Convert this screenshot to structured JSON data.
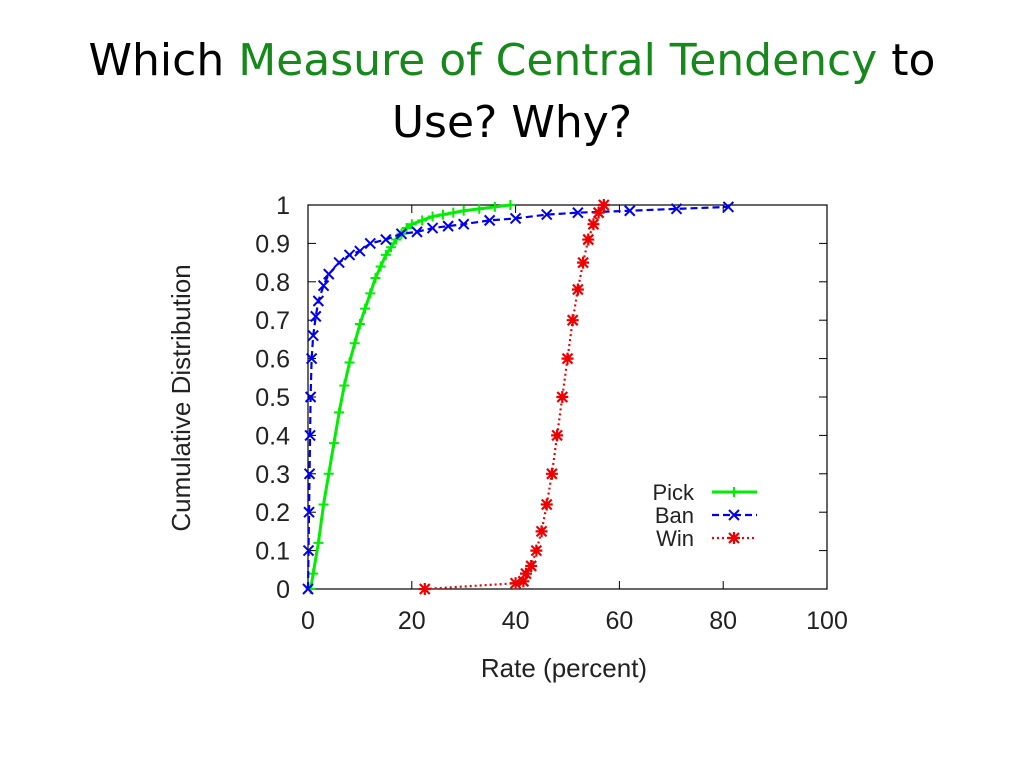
{
  "slide": {
    "title_part1": "Which ",
    "title_highlight": "Measure of Central Tendency",
    "title_part2": " to",
    "title_line2": "Use?  Why?",
    "highlight_color": "#16891b"
  },
  "chart_data": {
    "type": "line",
    "title": "",
    "xlabel": "Rate (percent)",
    "ylabel": "Cumulative Distribution",
    "xlim": [
      0,
      100
    ],
    "ylim": [
      0,
      1
    ],
    "xticks": [
      "0",
      "20",
      "40",
      "60",
      "80",
      "100"
    ],
    "yticks": [
      "0",
      "0.1",
      "0.2",
      "0.3",
      "0.4",
      "0.5",
      "0.6",
      "0.7",
      "0.8",
      "0.9",
      "1"
    ],
    "grid": false,
    "legend_position": "bottom-right",
    "series": [
      {
        "name": "Pick",
        "color": "#00ee00",
        "line_style": "solid",
        "marker": "plus",
        "points": [
          [
            0.5,
            0.0
          ],
          [
            1,
            0.04
          ],
          [
            2,
            0.12
          ],
          [
            3,
            0.22
          ],
          [
            4,
            0.3
          ],
          [
            5,
            0.38
          ],
          [
            6,
            0.46
          ],
          [
            7,
            0.53
          ],
          [
            8,
            0.59
          ],
          [
            9,
            0.64
          ],
          [
            10,
            0.69
          ],
          [
            11,
            0.73
          ],
          [
            12,
            0.77
          ],
          [
            13,
            0.81
          ],
          [
            14,
            0.84
          ],
          [
            15,
            0.87
          ],
          [
            16,
            0.89
          ],
          [
            17,
            0.91
          ],
          [
            18,
            0.925
          ],
          [
            19,
            0.94
          ],
          [
            20,
            0.95
          ],
          [
            22,
            0.96
          ],
          [
            24,
            0.97
          ],
          [
            26,
            0.975
          ],
          [
            28,
            0.98
          ],
          [
            30,
            0.985
          ],
          [
            33,
            0.99
          ],
          [
            36,
            0.995
          ],
          [
            39,
            1.0
          ]
        ]
      },
      {
        "name": "Ban",
        "color": "#0000ee",
        "line_style": "dashed",
        "marker": "x",
        "points": [
          [
            0,
            0.0
          ],
          [
            0.1,
            0.1
          ],
          [
            0.2,
            0.2
          ],
          [
            0.3,
            0.3
          ],
          [
            0.4,
            0.4
          ],
          [
            0.5,
            0.5
          ],
          [
            0.7,
            0.6
          ],
          [
            1,
            0.66
          ],
          [
            1.5,
            0.71
          ],
          [
            2,
            0.75
          ],
          [
            3,
            0.79
          ],
          [
            4,
            0.82
          ],
          [
            6,
            0.85
          ],
          [
            8,
            0.87
          ],
          [
            10,
            0.88
          ],
          [
            12,
            0.9
          ],
          [
            15,
            0.91
          ],
          [
            18,
            0.925
          ],
          [
            21,
            0.93
          ],
          [
            24,
            0.94
          ],
          [
            27,
            0.945
          ],
          [
            30,
            0.95
          ],
          [
            35,
            0.96
          ],
          [
            40,
            0.965
          ],
          [
            46,
            0.975
          ],
          [
            52,
            0.98
          ],
          [
            62,
            0.985
          ],
          [
            71,
            0.99
          ],
          [
            81,
            0.995
          ]
        ]
      },
      {
        "name": "Win",
        "color": "#ee0000",
        "line_style": "dotted",
        "marker": "star",
        "points": [
          [
            22.5,
            0.0
          ],
          [
            40,
            0.015
          ],
          [
            41.5,
            0.02
          ],
          [
            42,
            0.04
          ],
          [
            43,
            0.06
          ],
          [
            44,
            0.1
          ],
          [
            45,
            0.15
          ],
          [
            46,
            0.22
          ],
          [
            47,
            0.3
          ],
          [
            48,
            0.4
          ],
          [
            49,
            0.5
          ],
          [
            50,
            0.6
          ],
          [
            51,
            0.7
          ],
          [
            52,
            0.78
          ],
          [
            53,
            0.85
          ],
          [
            54,
            0.91
          ],
          [
            55,
            0.95
          ],
          [
            56,
            0.98
          ],
          [
            57,
            1.0
          ]
        ]
      }
    ]
  }
}
